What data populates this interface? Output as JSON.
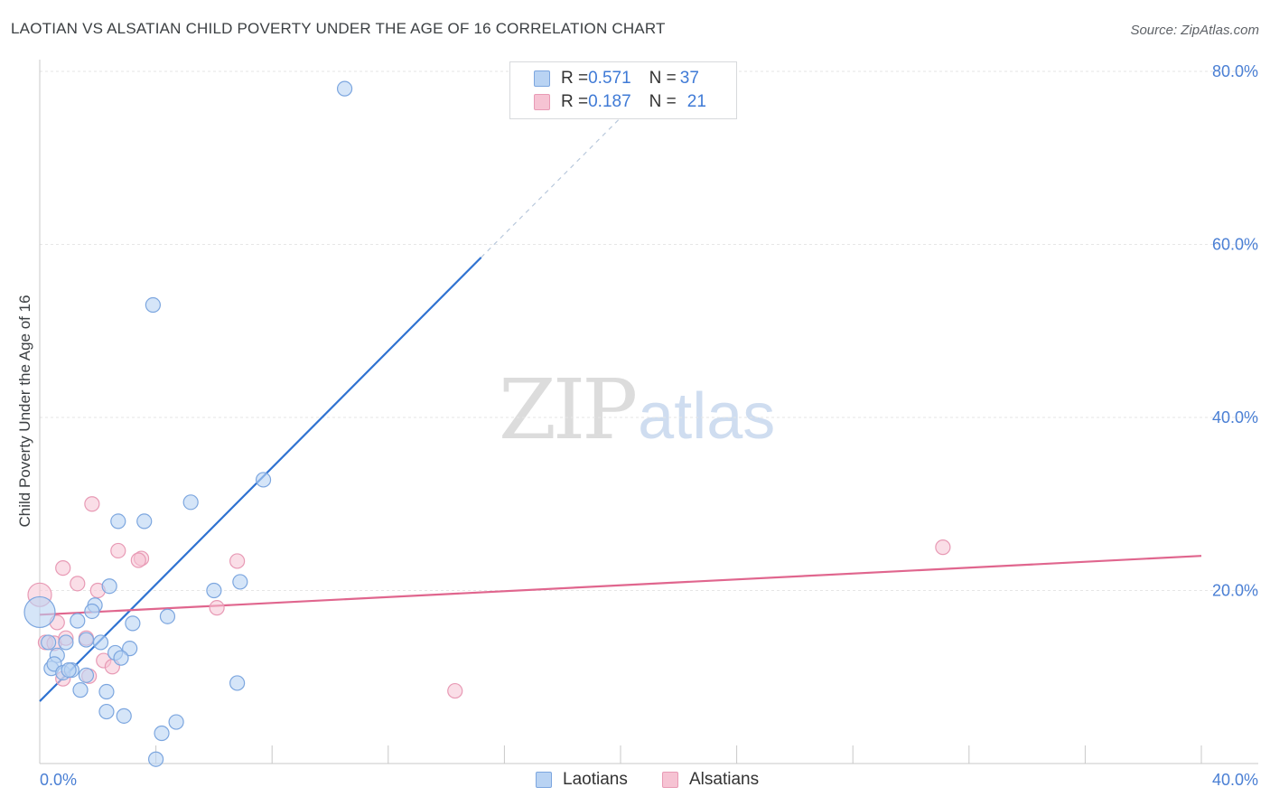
{
  "header": {
    "title": "LAOTIAN VS ALSATIAN CHILD POVERTY UNDER THE AGE OF 16 CORRELATION CHART",
    "source": "Source: ZipAtlas.com"
  },
  "watermark": {
    "zip": "ZIP",
    "atlas": "atlas"
  },
  "colors": {
    "blue_fill": "#b9d3f3",
    "blue_stroke": "#7ca6df",
    "blue_line": "#2f72d1",
    "pink_fill": "#f6c3d3",
    "pink_stroke": "#e89ab5",
    "pink_line": "#e0668e",
    "tick_text": "#4a7fd4"
  },
  "legend": {
    "rows": [
      {
        "r_label": "R = ",
        "r_value": "0.571",
        "n_label": "N = ",
        "n_value": "37"
      },
      {
        "r_label": "R = ",
        "r_value": "0.187",
        "n_label": "N = ",
        "n_value": "21"
      }
    ]
  },
  "bottom_legend": {
    "laotians": "Laotians",
    "alsatians": "Alsatians"
  },
  "chart_data": {
    "type": "scatter",
    "title": "LAOTIAN VS ALSATIAN CHILD POVERTY UNDER THE AGE OF 16 CORRELATION CHART",
    "xlabel": "",
    "ylabel": "Child Poverty Under the Age of 16",
    "xlim": [
      0,
      40
    ],
    "ylim": [
      0,
      82
    ],
    "x_tick_labels": [
      "0.0%",
      "40.0%"
    ],
    "y_ticks": [
      20,
      40,
      60,
      80
    ],
    "y_tick_labels": [
      "20.0%",
      "40.0%",
      "60.0%",
      "80.0%"
    ],
    "grid": true,
    "legend_position": "top-center",
    "series": [
      {
        "name": "Laotians",
        "r": 0.571,
        "n": 37,
        "points": [
          [
            10.5,
            78.0
          ],
          [
            3.9,
            53.0
          ],
          [
            7.7,
            32.8
          ],
          [
            5.2,
            30.2
          ],
          [
            2.7,
            28.0
          ],
          [
            3.6,
            28.0
          ],
          [
            6.9,
            21.0
          ],
          [
            2.4,
            20.5
          ],
          [
            6.0,
            20.0
          ],
          [
            1.9,
            18.3
          ],
          [
            1.8,
            17.6
          ],
          [
            4.4,
            17.0
          ],
          [
            0.0,
            17.5
          ],
          [
            1.3,
            16.5
          ],
          [
            3.2,
            16.2
          ],
          [
            0.3,
            14.0
          ],
          [
            0.9,
            14.0
          ],
          [
            1.6,
            14.3
          ],
          [
            2.1,
            14.0
          ],
          [
            0.6,
            12.5
          ],
          [
            2.6,
            12.8
          ],
          [
            3.1,
            13.3
          ],
          [
            2.8,
            12.2
          ],
          [
            0.4,
            11.0
          ],
          [
            0.5,
            11.5
          ],
          [
            0.8,
            10.5
          ],
          [
            1.1,
            10.8
          ],
          [
            1.6,
            10.2
          ],
          [
            6.8,
            9.3
          ],
          [
            1.4,
            8.5
          ],
          [
            2.3,
            8.3
          ],
          [
            2.3,
            6.0
          ],
          [
            2.9,
            5.5
          ],
          [
            4.7,
            4.8
          ],
          [
            4.2,
            3.5
          ],
          [
            4.0,
            0.5
          ],
          [
            1.0,
            10.8
          ]
        ],
        "trendline": {
          "x": [
            0,
            15.2
          ],
          "y": [
            7.2,
            58.5
          ]
        },
        "trendline_extension": {
          "x": [
            15.2,
            21.0
          ],
          "y": [
            58.5,
            78.0
          ]
        }
      },
      {
        "name": "Alsatians",
        "r": 0.187,
        "n": 21,
        "points": [
          [
            0.0,
            19.5
          ],
          [
            1.8,
            30.0
          ],
          [
            2.7,
            24.6
          ],
          [
            3.5,
            23.7
          ],
          [
            3.4,
            23.5
          ],
          [
            6.8,
            23.4
          ],
          [
            0.8,
            22.6
          ],
          [
            1.3,
            20.8
          ],
          [
            2.0,
            20.0
          ],
          [
            6.1,
            18.0
          ],
          [
            0.6,
            16.3
          ],
          [
            0.2,
            14.0
          ],
          [
            0.5,
            13.9
          ],
          [
            0.9,
            14.5
          ],
          [
            1.6,
            14.5
          ],
          [
            2.2,
            11.9
          ],
          [
            2.5,
            11.2
          ],
          [
            1.7,
            10.1
          ],
          [
            0.8,
            9.8
          ],
          [
            14.3,
            8.4
          ],
          [
            31.1,
            25.0
          ]
        ],
        "trendline": {
          "x": [
            0,
            40
          ],
          "y": [
            17.2,
            24.0
          ]
        }
      }
    ]
  }
}
